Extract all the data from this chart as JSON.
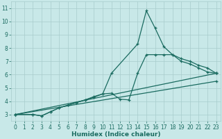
{
  "bg_color": "#c8e8e8",
  "grid_color": "#a8cccc",
  "line_color": "#1a6b60",
  "line_width": 0.9,
  "marker": "+",
  "marker_size": 3,
  "marker_ew": 0.9,
  "xlabel": "Humidex (Indice chaleur)",
  "xlabel_fontsize": 6.5,
  "xlabel_color": "#1a6b60",
  "tick_fontsize": 5.5,
  "tick_color": "#1a6b60",
  "xlim": [
    -0.5,
    23.5
  ],
  "ylim": [
    2.5,
    11.5
  ],
  "xticks": [
    0,
    1,
    2,
    3,
    4,
    5,
    6,
    7,
    8,
    9,
    10,
    11,
    12,
    13,
    14,
    15,
    16,
    17,
    18,
    19,
    20,
    21,
    22,
    23
  ],
  "yticks": [
    3,
    4,
    5,
    6,
    7,
    8,
    9,
    10,
    11
  ],
  "series": [
    {
      "x": [
        0,
        2,
        3,
        4,
        5,
        6,
        7,
        8,
        9,
        10,
        11,
        14,
        15,
        16,
        17,
        18,
        19,
        20,
        21,
        22,
        23
      ],
      "y": [
        3,
        3,
        2.9,
        3.2,
        3.5,
        3.7,
        3.9,
        4.1,
        4.3,
        4.55,
        6.1,
        8.3,
        10.8,
        9.5,
        8.1,
        7.5,
        7.0,
        6.8,
        6.5,
        6.2,
        6.1
      ]
    },
    {
      "x": [
        0,
        2,
        3,
        4,
        5,
        6,
        7,
        8,
        9,
        10,
        11,
        12,
        13,
        14,
        15,
        16,
        17,
        18,
        19,
        20,
        21,
        22,
        23
      ],
      "y": [
        3,
        3,
        2.9,
        3.2,
        3.5,
        3.7,
        3.9,
        4.1,
        4.35,
        4.55,
        4.6,
        4.15,
        4.1,
        6.1,
        7.5,
        7.5,
        7.5,
        7.5,
        7.2,
        7.0,
        6.7,
        6.5,
        6.1
      ]
    },
    {
      "x": [
        0,
        23
      ],
      "y": [
        3,
        6.1
      ]
    },
    {
      "x": [
        0,
        23
      ],
      "y": [
        3,
        5.5
      ]
    }
  ]
}
